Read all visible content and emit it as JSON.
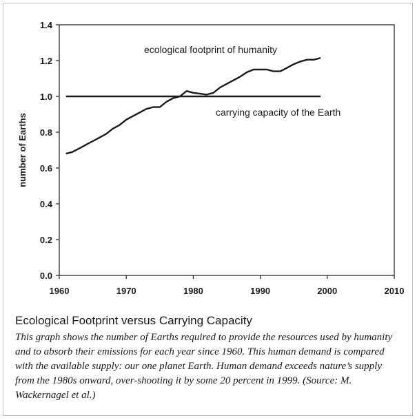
{
  "chart_data": {
    "type": "line",
    "title": "",
    "xlabel": "",
    "ylabel": "number of Earths",
    "xlim": [
      1960,
      2010
    ],
    "ylim": [
      0.0,
      1.4
    ],
    "x_ticks": [
      "1960",
      "1970",
      "1980",
      "1990",
      "2000",
      "2010"
    ],
    "y_ticks": [
      "0.0",
      "0.2",
      "0.4",
      "0.6",
      "0.8",
      "1.0",
      "1.2",
      "1.4"
    ],
    "grid": false,
    "legend": "none",
    "series": [
      {
        "name": "ecological footprint of humanity",
        "x": [
          1961,
          1962,
          1963,
          1964,
          1965,
          1966,
          1967,
          1968,
          1969,
          1970,
          1971,
          1972,
          1973,
          1974,
          1975,
          1976,
          1977,
          1978,
          1979,
          1980,
          1981,
          1982,
          1983,
          1984,
          1985,
          1986,
          1987,
          1988,
          1989,
          1990,
          1991,
          1992,
          1993,
          1994,
          1995,
          1996,
          1997,
          1998,
          1999
        ],
        "y": [
          0.68,
          0.69,
          0.71,
          0.73,
          0.75,
          0.77,
          0.79,
          0.82,
          0.84,
          0.87,
          0.89,
          0.91,
          0.93,
          0.94,
          0.94,
          0.97,
          0.99,
          1.0,
          1.03,
          1.02,
          1.015,
          1.01,
          1.02,
          1.05,
          1.07,
          1.09,
          1.11,
          1.135,
          1.15,
          1.15,
          1.15,
          1.14,
          1.14,
          1.16,
          1.18,
          1.195,
          1.205,
          1.205,
          1.215
        ]
      },
      {
        "name": "carrying capacity of the Earth",
        "x": [
          1961,
          1999
        ],
        "y": [
          1.0,
          1.0
        ]
      }
    ]
  },
  "caption": {
    "title": "Ecological Footprint versus Carrying Capacity",
    "body": "This graph shows the number of Earths required to provide the resources used by humanity and to absorb their emissions for each year since 1960. This human demand is compared with the available supply: our one planet Earth. Human demand exceeds nature’s supply from the 1980s onward, over-shooting it by some 20 percent in 1999. (Source: M. Wackernagel et al.)"
  }
}
